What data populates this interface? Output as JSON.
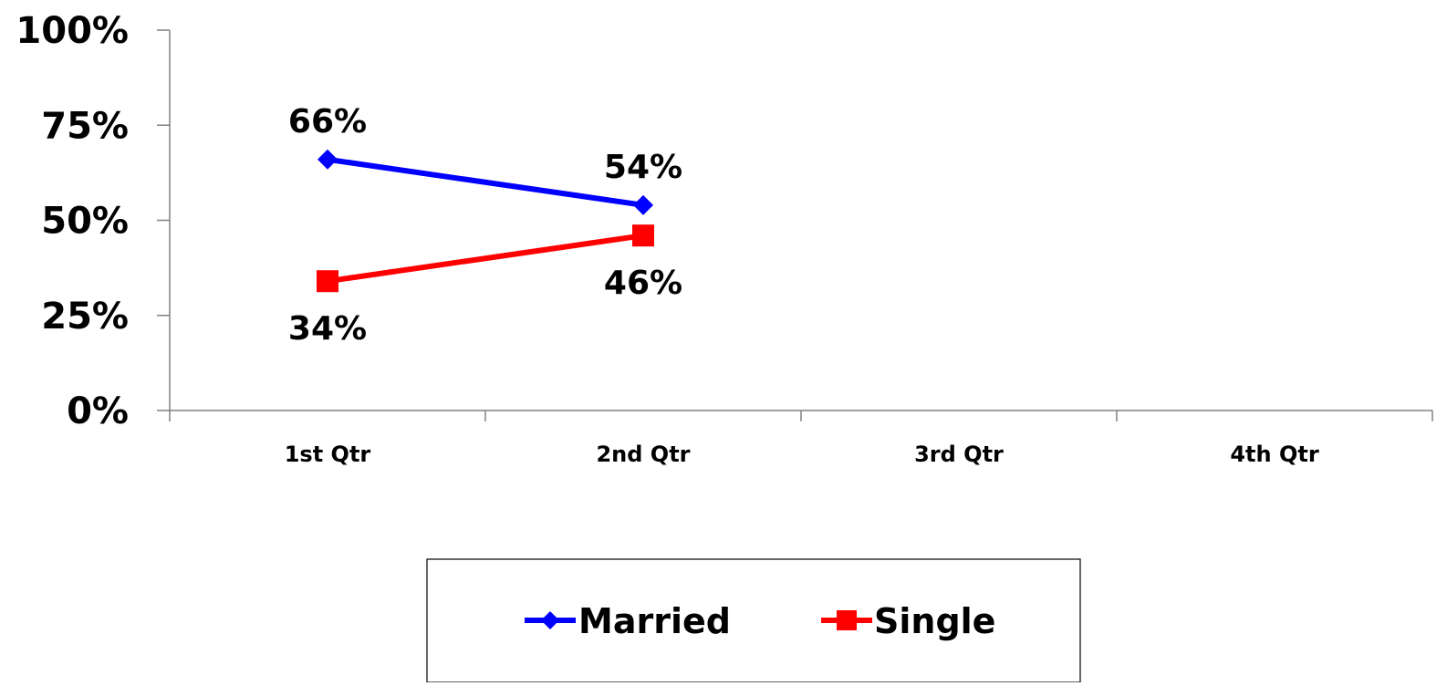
{
  "chart_data": {
    "type": "line",
    "categories": [
      "1st Qtr",
      "2nd Qtr",
      "3rd Qtr",
      "4th Qtr"
    ],
    "series": [
      {
        "name": "Married",
        "values": [
          66,
          54,
          null,
          null
        ],
        "data_labels": [
          "66%",
          "54%",
          "",
          ""
        ],
        "color": "#0000ff",
        "marker": "diamond",
        "label_position": "above"
      },
      {
        "name": "Single",
        "values": [
          34,
          46,
          null,
          null
        ],
        "data_labels": [
          "34%",
          "46%",
          "",
          ""
        ],
        "color": "#ff0000",
        "marker": "square",
        "label_position": "below"
      }
    ],
    "ylim": [
      0,
      100
    ],
    "yticks": [
      0,
      25,
      50,
      75,
      100
    ],
    "ytick_labels": [
      "0%",
      "25%",
      "50%",
      "75%",
      "100%"
    ],
    "title": "",
    "xlabel": "",
    "ylabel": "",
    "grid": false,
    "legend_position": "bottom"
  }
}
